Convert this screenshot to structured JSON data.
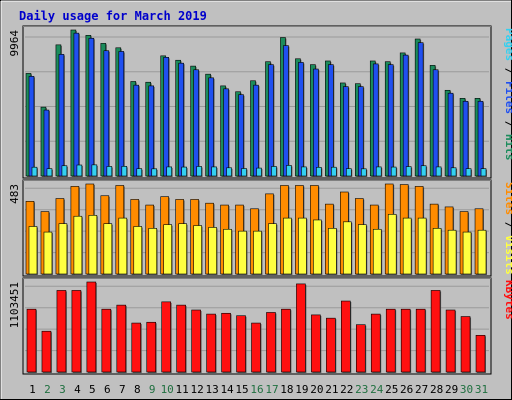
{
  "chart_data": {
    "type": "bar",
    "title": "Daily usage for March 2019",
    "colors": {
      "title": "#0000cc",
      "frame_bg": "#c0c0c0",
      "panel_bg": "#c0c0c0",
      "hits": "#1c8c5c",
      "files": "#2050f0",
      "pages": "#34d0f0",
      "visits": "#ffff40",
      "sites": "#ff8c00",
      "kbytes": "#ff1010",
      "weekend_day": "#207040",
      "weekday_day": "#000000"
    },
    "days": [
      "1",
      "2",
      "3",
      "4",
      "5",
      "6",
      "7",
      "8",
      "9",
      "10",
      "11",
      "12",
      "13",
      "14",
      "15",
      "16",
      "17",
      "18",
      "19",
      "20",
      "21",
      "22",
      "23",
      "24",
      "25",
      "26",
      "27",
      "28",
      "29",
      "30",
      "31"
    ],
    "weekend_days": [
      "2",
      "3",
      "9",
      "10",
      "16",
      "17",
      "23",
      "24",
      "30",
      "31"
    ],
    "panels": [
      {
        "name": "hits-files-pages",
        "max_label": "9964",
        "legend": [
          {
            "text": "Pages",
            "color": "#34d0f0"
          },
          {
            "text": " / ",
            "color": "#000000"
          },
          {
            "text": "Files",
            "color": "#2050f0"
          },
          {
            "text": " / ",
            "color": "#000000"
          },
          {
            "text": "Hits",
            "color": "#1c8c5c"
          }
        ],
        "ylim": [
          0,
          9964
        ],
        "series": [
          {
            "name": "Hits",
            "color": "#1c8c5c",
            "values": [
              7000,
              4700,
              8950,
              9964,
              9600,
              9050,
              8750,
              6450,
              6400,
              8200,
              7900,
              7500,
              6950,
              6150,
              5750,
              6500,
              7800,
              9450,
              8000,
              7600,
              7850,
              6350,
              6300,
              7850,
              7800,
              8400,
              9350,
              7550,
              5850,
              5300,
              5300
            ]
          },
          {
            "name": "Files",
            "color": "#2050f0",
            "values": [
              6800,
              4500,
              8300,
              9750,
              9400,
              8550,
              8500,
              6200,
              6150,
              8100,
              7700,
              7250,
              6700,
              5950,
              5550,
              6200,
              7600,
              8900,
              7750,
              7300,
              7600,
              6100,
              6100,
              7650,
              7600,
              8250,
              9100,
              7250,
              5650,
              5100,
              5100
            ]
          },
          {
            "name": "Pages",
            "color": "#34d0f0",
            "values": [
              600,
              500,
              700,
              750,
              760,
              650,
              660,
              500,
              490,
              620,
              610,
              650,
              620,
              560,
              510,
              540,
              650,
              720,
              620,
              590,
              600,
              500,
              490,
              620,
              610,
              640,
              700,
              620,
              560,
              500,
              500
            ]
          }
        ]
      },
      {
        "name": "visits-sites",
        "max_label": "483",
        "legend": [
          {
            "text": "Sites",
            "color": "#ff8c00"
          },
          {
            "text": " / ",
            "color": "#000000"
          },
          {
            "text": "Visits",
            "color": "#ffff40"
          }
        ],
        "ylim": [
          0,
          483
        ],
        "series": [
          {
            "name": "Sites",
            "color": "#ff8c00",
            "values": [
              390,
              335,
              405,
              470,
              483,
              420,
              475,
              400,
              370,
              415,
              400,
              400,
              380,
              370,
              370,
              350,
              430,
              475,
              475,
              475,
              375,
              440,
              405,
              370,
              483,
              480,
              470,
              375,
              360,
              335,
              350
            ]
          },
          {
            "name": "Visits",
            "color": "#ffff40",
            "values": [
              255,
              225,
              270,
              310,
              315,
              270,
              300,
              255,
              245,
              265,
              270,
              260,
              250,
              240,
              230,
              230,
              270,
              300,
              300,
              290,
              245,
              280,
              265,
              240,
              320,
              300,
              300,
              245,
              235,
              225,
              235
            ]
          }
        ]
      },
      {
        "name": "kbytes",
        "max_label": "1103451",
        "legend": [
          {
            "text": "KBytes",
            "color": "#ff1010"
          }
        ],
        "ylim": [
          0,
          1103451
        ],
        "series": [
          {
            "name": "KBytes",
            "color": "#ff1010",
            "values": [
              770000,
              500000,
              1000000,
              1000000,
              1103451,
              770000,
              820000,
              600000,
              610000,
              860000,
              820000,
              760000,
              710000,
              720000,
              690000,
              600000,
              730000,
              770000,
              1080000,
              700000,
              660000,
              870000,
              580000,
              710000,
              770000,
              770000,
              770000,
              1000000,
              760000,
              680000,
              450000
            ]
          }
        ]
      }
    ]
  }
}
